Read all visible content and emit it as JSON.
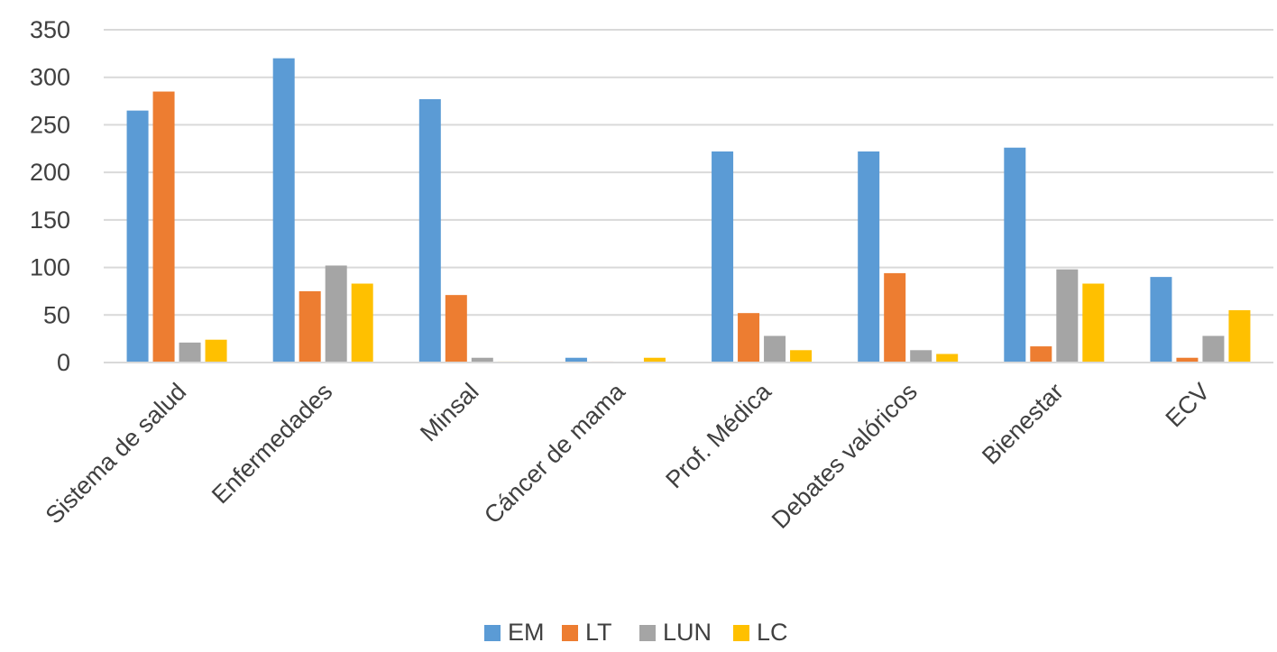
{
  "chart_data": {
    "type": "bar",
    "title": "",
    "xlabel": "",
    "ylabel": "",
    "ylim": [
      0,
      350
    ],
    "yticks": [
      0,
      50,
      100,
      150,
      200,
      250,
      300,
      350
    ],
    "grid": true,
    "legend_position": "bottom",
    "categories": [
      "Sistema de salud",
      "Enfermedades",
      "Minsal",
      "Cáncer de mama",
      "Prof. Médica",
      "Debates valóricos",
      "Bienestar",
      "ECV"
    ],
    "series": [
      {
        "name": "EM",
        "color": "#5B9BD5",
        "values": [
          265,
          320,
          277,
          5,
          222,
          222,
          226,
          90
        ]
      },
      {
        "name": "LT",
        "color": "#ED7D31",
        "values": [
          285,
          75,
          71,
          1,
          52,
          94,
          17,
          5
        ]
      },
      {
        "name": "LUN",
        "color": "#A5A5A5",
        "values": [
          21,
          102,
          5,
          0,
          28,
          13,
          98,
          28
        ]
      },
      {
        "name": "LC",
        "color": "#FFC000",
        "values": [
          24,
          83,
          1,
          5,
          13,
          9,
          83,
          55
        ]
      }
    ]
  }
}
